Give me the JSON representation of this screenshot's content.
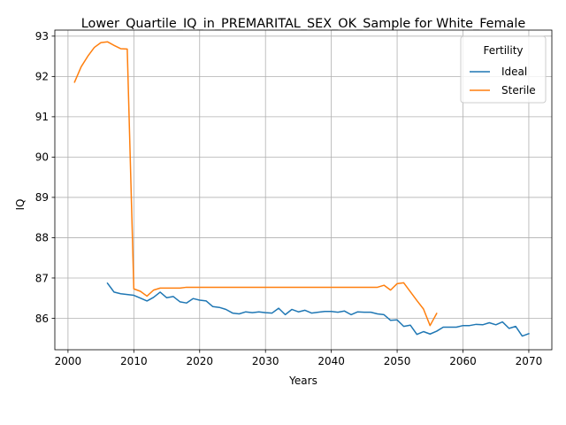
{
  "chart_data": {
    "type": "line",
    "title": "Lower_Quartile_IQ_in_PREMARITAL_SEX_OK_Sample for White_Female",
    "xlabel": "Years",
    "ylabel": "IQ",
    "xlim": [
      1998,
      2073.5
    ],
    "ylim": [
      85.22,
      93.15
    ],
    "xticks": [
      2000,
      2010,
      2020,
      2030,
      2040,
      2050,
      2060,
      2070
    ],
    "yticks": [
      86,
      87,
      88,
      89,
      90,
      91,
      92,
      93
    ],
    "grid": true,
    "legend": {
      "title": "Fertility",
      "placement": "top-right"
    },
    "series": [
      {
        "name": "Ideal",
        "color": "#1f77b4",
        "x": [
          2006,
          2007,
          2008,
          2009,
          2010,
          2011,
          2012,
          2013,
          2014,
          2015,
          2016,
          2017,
          2018,
          2019,
          2020,
          2021,
          2022,
          2023,
          2024,
          2025,
          2026,
          2027,
          2028,
          2029,
          2030,
          2031,
          2032,
          2033,
          2034,
          2035,
          2036,
          2037,
          2038,
          2039,
          2040,
          2041,
          2042,
          2043,
          2044,
          2045,
          2046,
          2047,
          2048,
          2049,
          2050,
          2051,
          2052,
          2053,
          2054,
          2055,
          2056,
          2057,
          2058,
          2059,
          2060,
          2061,
          2062,
          2063,
          2064,
          2065,
          2066,
          2067,
          2068,
          2069,
          2070
        ],
        "y": [
          86.87,
          86.65,
          86.61,
          86.59,
          86.57,
          86.5,
          86.43,
          86.52,
          86.65,
          86.51,
          86.54,
          86.41,
          86.38,
          86.49,
          86.45,
          86.43,
          86.29,
          86.27,
          86.22,
          86.13,
          86.11,
          86.16,
          86.14,
          86.16,
          86.14,
          86.13,
          86.25,
          86.09,
          86.22,
          86.16,
          86.2,
          86.13,
          86.15,
          86.17,
          86.17,
          86.15,
          86.18,
          86.09,
          86.16,
          86.15,
          86.15,
          86.11,
          86.09,
          85.95,
          85.96,
          85.8,
          85.83,
          85.6,
          85.67,
          85.61,
          85.68,
          85.78,
          85.78,
          85.78,
          85.82,
          85.82,
          85.85,
          85.84,
          85.89,
          85.84,
          85.91,
          85.75,
          85.8,
          85.56,
          85.62
        ]
      },
      {
        "name": "Sterile",
        "color": "#ff7f0e",
        "x": [
          2001,
          2002,
          2003,
          2004,
          2005,
          2006,
          2007,
          2008,
          2009,
          2010,
          2011,
          2012,
          2013,
          2014,
          2015,
          2016,
          2017,
          2018,
          2019,
          2020,
          2021,
          2022,
          2023,
          2024,
          2025,
          2026,
          2027,
          2028,
          2029,
          2030,
          2031,
          2032,
          2033,
          2034,
          2035,
          2036,
          2037,
          2038,
          2039,
          2040,
          2041,
          2042,
          2043,
          2044,
          2045,
          2046,
          2047,
          2048,
          2049,
          2050,
          2051,
          2052,
          2053,
          2054,
          2055,
          2056
        ],
        "y": [
          91.86,
          92.24,
          92.5,
          92.72,
          92.84,
          92.86,
          92.77,
          92.69,
          92.68,
          86.73,
          86.67,
          86.55,
          86.7,
          86.75,
          86.75,
          86.75,
          86.75,
          86.77,
          86.77,
          86.77,
          86.77,
          86.77,
          86.77,
          86.77,
          86.77,
          86.77,
          86.77,
          86.77,
          86.77,
          86.77,
          86.77,
          86.77,
          86.77,
          86.77,
          86.77,
          86.77,
          86.77,
          86.77,
          86.77,
          86.77,
          86.77,
          86.77,
          86.77,
          86.77,
          86.77,
          86.77,
          86.77,
          86.82,
          86.7,
          86.86,
          86.88,
          86.66,
          86.44,
          86.23,
          85.82,
          86.12
        ]
      }
    ]
  }
}
